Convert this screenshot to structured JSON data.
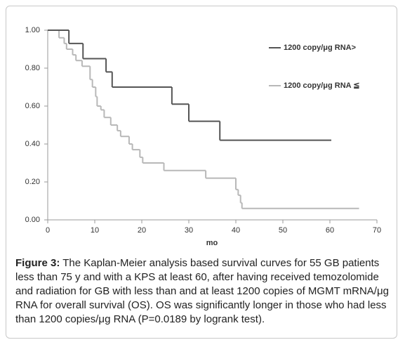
{
  "chart_data": {
    "type": "step",
    "xlabel": "mo",
    "xlim": [
      0,
      70
    ],
    "xticks": [
      0,
      10,
      20,
      30,
      40,
      50,
      60,
      70
    ],
    "ylim": [
      0,
      1
    ],
    "yticks": [
      {
        "value": 0,
        "label": "0.00"
      },
      {
        "value": 0.2,
        "label": "0.20"
      },
      {
        "value": 0.4,
        "label": "0.40"
      },
      {
        "value": 0.6,
        "label": "0.60"
      },
      {
        "value": 0.8,
        "label": "0.80"
      },
      {
        "value": 1,
        "label": "1.00"
      }
    ],
    "grid": false,
    "series": [
      {
        "name": "1200 copy/μg RNA>",
        "color": "#555555",
        "x": [
          0,
          4.5,
          7.5,
          12.4,
          13.7,
          26.4,
          30,
          36.6,
          60.3
        ],
        "values": [
          1,
          0.93,
          0.85,
          0.78,
          0.7,
          0.61,
          0.52,
          0.42,
          0.42
        ]
      },
      {
        "name": "1200 copy/μg RNA ≦",
        "color": "#b8b8b8",
        "x": [
          0,
          2.4,
          3.5,
          4.0,
          5.3,
          6.0,
          7.3,
          9.0,
          9.5,
          10.2,
          10.5,
          11.3,
          12.0,
          13.4,
          14.8,
          15.5,
          17.3,
          18.0,
          19.6,
          20.2,
          24.7,
          33.6,
          40.0,
          40.5,
          41.0,
          41.3,
          66.2
        ],
        "values": [
          1,
          0.96,
          0.93,
          0.9,
          0.87,
          0.84,
          0.81,
          0.74,
          0.7,
          0.65,
          0.6,
          0.58,
          0.54,
          0.5,
          0.47,
          0.44,
          0.4,
          0.37,
          0.33,
          0.3,
          0.26,
          0.22,
          0.16,
          0.13,
          0.09,
          0.06,
          0.06
        ]
      }
    ]
  },
  "caption": {
    "label": "Figure 3:",
    "text": " The Kaplan-Meier analysis based survival curves for 55 GB patients less than 75 y and with a KPS at least 60, after having received temozolomide and radiation for GB with less than and at least 1200 copies of MGMT mRNA/μg RNA for overall survival (OS). OS was significantly longer in those who had less than 1200 copies/μg RNA (P=0.0189 by logrank test)."
  }
}
